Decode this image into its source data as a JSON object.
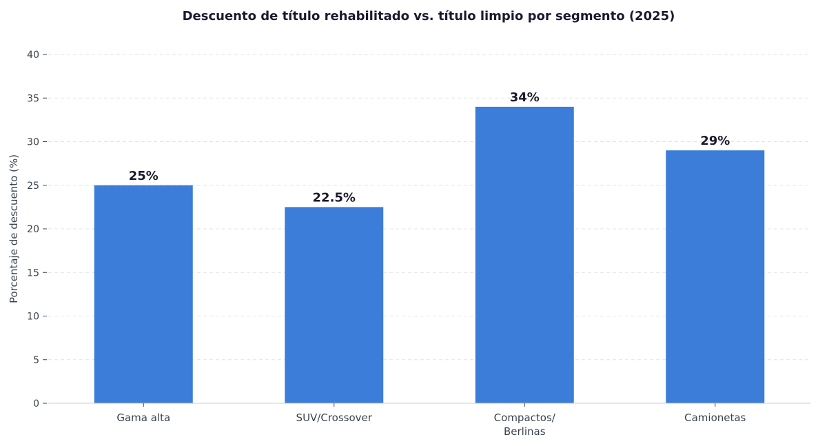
{
  "chart_data": {
    "type": "bar",
    "title": "Descuento de título rehabilitado vs. título limpio por segmento (2025)",
    "xlabel": "",
    "ylabel": "Porcentaje de descuento (%)",
    "categories": [
      [
        "Gama alta"
      ],
      [
        "SUV/Crossover"
      ],
      [
        "Compactos/",
        "Berlinas"
      ],
      [
        "Camionetas"
      ]
    ],
    "values": [
      25,
      22.5,
      34,
      29
    ],
    "data_labels": [
      "25%",
      "22.5%",
      "34%",
      "29%"
    ],
    "ylim": [
      0,
      40
    ],
    "yticks": [
      0,
      5,
      10,
      15,
      20,
      25,
      30,
      35,
      40
    ],
    "grid": "y dashed",
    "colors": {
      "bar": "#3b7dd8",
      "grid": "#e3e3e3",
      "axis": "#cccccc"
    }
  }
}
